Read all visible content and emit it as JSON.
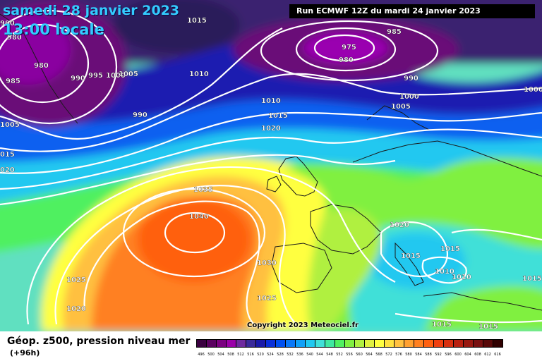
{
  "header": {
    "date": "samedi 28 janvier 2023",
    "time": "13:00 locale",
    "run": "Run ECMWF 12Z du mardi 24 janvier 2023"
  },
  "footer": {
    "parameter": "Géop. z500, pression niveau mer",
    "lead": "(+96h)",
    "copyright": "Copyright 2023 Meteociel.fr"
  },
  "legend": {
    "values": [
      "496",
      "500",
      "504",
      "508",
      "512",
      "516",
      "520",
      "524",
      "528",
      "532",
      "536",
      "540",
      "544",
      "548",
      "552",
      "556",
      "560",
      "564",
      "568",
      "572",
      "576",
      "580",
      "584",
      "588",
      "592",
      "596",
      "600",
      "604",
      "608",
      "612",
      "616"
    ],
    "colors": [
      "#3a0040",
      "#5a0060",
      "#7a0080",
      "#9a00a8",
      "#6e2a9e",
      "#3a2a9a",
      "#1a1aa8",
      "#0a30d8",
      "#0050f0",
      "#0a78f8",
      "#10a0f8",
      "#20c8f0",
      "#40e0d8",
      "#40e8a0",
      "#50f060",
      "#80f040",
      "#b0f040",
      "#e0f040",
      "#ffff40",
      "#ffe040",
      "#ffc040",
      "#ffa030",
      "#ff8020",
      "#ff6010",
      "#f04010",
      "#d83010",
      "#b82010",
      "#981810",
      "#781010",
      "#580808",
      "#300000"
    ]
  },
  "isobar_labels": [
    {
      "text": "1015",
      "key": "l1015-nw"
    },
    {
      "text": "990",
      "key": "l990-a"
    },
    {
      "text": "980",
      "key": "l980-a"
    },
    {
      "text": "985",
      "key": "l985-w"
    },
    {
      "text": "980",
      "key": "l980-b"
    },
    {
      "text": "990",
      "key": "l990-b"
    },
    {
      "text": "995",
      "key": "l995"
    },
    {
      "text": "1000",
      "key": "l1000-a"
    },
    {
      "text": "1005",
      "key": "l1005-a"
    },
    {
      "text": "1005",
      "key": "l1005-w"
    },
    {
      "text": "015",
      "key": "l015-w"
    },
    {
      "text": "020",
      "key": "l020-w"
    },
    {
      "text": "1010",
      "key": "l1010-a"
    },
    {
      "text": "990",
      "key": "l990-c"
    },
    {
      "text": "975",
      "key": "l975"
    },
    {
      "text": "980",
      "key": "l980-c"
    },
    {
      "text": "985",
      "key": "l985-n"
    },
    {
      "text": "990",
      "key": "l990-d"
    },
    {
      "text": "1000",
      "key": "l1000-b"
    },
    {
      "text": "1005",
      "key": "l1005-b"
    },
    {
      "text": "1000",
      "key": "l1000-c"
    },
    {
      "text": "1010",
      "key": "l1010-b"
    },
    {
      "text": "1015",
      "key": "l1015-b"
    },
    {
      "text": "1020",
      "key": "l1020-a"
    },
    {
      "text": "1035",
      "key": "l1035"
    },
    {
      "text": "1040",
      "key": "l1040"
    },
    {
      "text": "1030",
      "key": "l1030"
    },
    {
      "text": "1025",
      "key": "l1025-a"
    },
    {
      "text": "1025",
      "key": "l1025-b"
    },
    {
      "text": "1020",
      "key": "l1020-b"
    },
    {
      "text": "1020",
      "key": "l1020-c"
    },
    {
      "text": "1015",
      "key": "l1015-c"
    },
    {
      "text": "1015",
      "key": "l1015-d"
    },
    {
      "text": "1010",
      "key": "l1010-c"
    },
    {
      "text": "1010",
      "key": "l1010-d"
    },
    {
      "text": "1015",
      "key": "l1015-e"
    },
    {
      "text": "1015",
      "key": "l1015-f"
    },
    {
      "text": "1015",
      "key": "l1015-g"
    }
  ]
}
